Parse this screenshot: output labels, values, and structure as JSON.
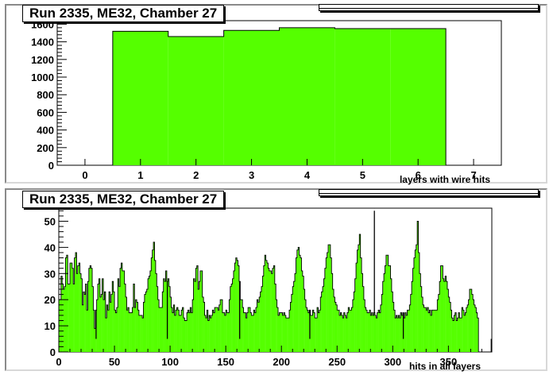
{
  "chart_data": [
    {
      "type": "bar",
      "title": "Run 2335, ME32, Chamber 27",
      "xlabel": "layers with wire hits",
      "ylabel": "",
      "xlim": [
        -0.5,
        7.5
      ],
      "ylim": [
        0,
        1640
      ],
      "x_ticks": [
        0,
        1,
        2,
        3,
        4,
        5,
        6,
        7
      ],
      "y_ticks": [
        0,
        200,
        400,
        600,
        800,
        1000,
        1200,
        1400,
        1600
      ],
      "bins": [
        {
          "x": 1,
          "value": 1520
        },
        {
          "x": 2,
          "value": 1460
        },
        {
          "x": 3,
          "value": 1530
        },
        {
          "x": 4,
          "value": 1560
        },
        {
          "x": 5,
          "value": 1550
        },
        {
          "x": 6,
          "value": 1550
        }
      ],
      "fill_color": "#55ff00",
      "grid": false
    },
    {
      "type": "bar",
      "title": "Run 2335, ME32, Chamber 27",
      "xlabel": "hits in all layers",
      "ylabel": "",
      "xlim": [
        0,
        389
      ],
      "ylim": [
        0,
        55
      ],
      "x_ticks": [
        0,
        50,
        100,
        150,
        200,
        250,
        300,
        350
      ],
      "y_ticks": [
        0,
        10,
        20,
        30,
        40,
        50
      ],
      "bin_width": 1,
      "values": [
        20,
        20,
        29,
        26,
        24,
        25,
        36,
        37,
        26,
        26,
        34,
        34,
        32,
        26,
        36,
        38,
        30,
        33,
        34,
        30,
        28,
        18,
        23,
        22,
        26,
        16,
        27,
        32,
        33,
        32,
        25,
        16,
        9,
        16,
        20,
        26,
        28,
        21,
        22,
        28,
        20,
        23,
        13,
        18,
        16,
        23,
        19,
        22,
        27,
        23,
        16,
        15,
        17,
        28,
        25,
        32,
        34,
        31,
        31,
        26,
        21,
        16,
        17,
        15,
        15,
        15,
        17,
        26,
        17,
        20,
        19,
        16,
        14,
        14,
        14,
        13,
        19,
        22,
        23,
        24,
        28,
        29,
        31,
        36,
        39,
        42,
        35,
        30,
        25,
        20,
        17,
        17,
        17,
        23,
        28,
        27,
        31,
        27,
        28,
        25,
        21,
        17,
        15,
        18,
        14,
        16,
        17,
        16,
        14,
        14,
        16,
        17,
        13,
        12,
        12,
        15,
        16,
        15,
        17,
        15,
        20,
        28,
        27,
        32,
        33,
        24,
        27,
        31,
        31,
        21,
        19,
        14,
        13,
        16,
        12,
        14,
        13,
        14,
        16,
        15,
        17,
        17,
        17,
        16,
        18,
        20,
        20,
        15,
        15,
        14,
        16,
        15,
        15,
        20,
        25,
        26,
        28,
        31,
        34,
        36,
        35,
        33,
        27,
        20,
        20,
        17,
        15,
        15,
        13,
        15,
        17,
        17,
        15,
        14,
        14,
        16,
        15,
        17,
        20,
        19,
        21,
        23,
        25,
        29,
        33,
        37,
        35,
        34,
        32,
        31,
        31,
        30,
        32,
        33,
        26,
        20,
        17,
        14,
        15,
        15,
        15,
        14,
        15,
        14,
        13,
        13,
        13,
        16,
        19,
        22,
        25,
        27,
        30,
        36,
        39,
        40,
        37,
        36,
        31,
        29,
        24,
        20,
        17,
        16,
        15,
        16,
        14,
        14,
        16,
        15,
        13,
        13,
        17,
        15,
        16,
        21,
        23,
        25,
        28,
        32,
        36,
        38,
        41,
        41,
        36,
        30,
        24,
        21,
        19,
        18,
        16,
        16,
        14,
        15,
        14,
        13,
        15,
        14,
        13,
        15,
        17,
        16,
        16,
        17,
        20,
        23,
        28,
        34,
        39,
        41,
        45,
        36,
        30,
        25,
        20,
        17,
        16,
        15,
        15,
        16,
        14,
        15,
        14,
        15,
        14,
        13,
        15,
        16,
        15,
        18,
        22,
        27,
        30,
        33,
        37,
        37,
        33,
        33,
        28,
        23,
        19,
        16,
        13,
        14,
        13,
        14,
        13,
        15,
        14,
        15,
        13,
        15,
        14,
        16,
        16,
        18,
        22,
        27,
        32,
        36,
        39,
        41,
        50,
        38,
        30,
        25,
        21,
        18,
        17,
        17,
        16,
        17,
        15,
        16,
        14,
        16,
        16,
        16,
        16,
        16,
        20,
        22,
        27,
        33,
        33,
        28,
        27,
        29,
        27,
        24,
        21,
        19,
        16,
        13,
        12,
        14,
        15,
        12,
        13,
        15,
        13,
        13,
        17,
        16,
        14,
        15,
        17,
        18,
        20,
        24,
        24,
        22,
        20,
        18,
        17,
        15,
        13
      ],
      "spikes": [
        {
          "x": 33,
          "value": 5
        },
        {
          "x": 97,
          "value": 5
        },
        {
          "x": 162,
          "value": 5
        },
        {
          "x": 225,
          "value": 5
        },
        {
          "x": 283,
          "value": 54
        },
        {
          "x": 309,
          "value": 5
        },
        {
          "x": 388,
          "value": 5
        }
      ],
      "fill_color": "#55ff00",
      "grid": false
    }
  ]
}
